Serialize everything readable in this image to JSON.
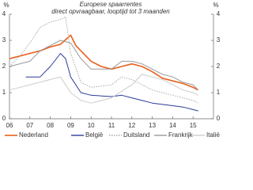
{
  "chart_data": {
    "type": "line",
    "title": "Europese spaarrentes",
    "subtitle": "direct opvraagbaar, looptijd tot 3 maanden",
    "ylabel": "%",
    "y2label": "%",
    "xlim": [
      2006,
      2016
    ],
    "xticks": [
      {
        "value": 2006,
        "label": "06"
      },
      {
        "value": 2007,
        "label": "07"
      },
      {
        "value": 2008,
        "label": "08"
      },
      {
        "value": 2009,
        "label": "09"
      },
      {
        "value": 2010,
        "label": "10"
      },
      {
        "value": 2011,
        "label": "11"
      },
      {
        "value": 2012,
        "label": "12"
      },
      {
        "value": 2013,
        "label": "13"
      },
      {
        "value": 2014,
        "label": "14"
      },
      {
        "value": 2015,
        "label": "15"
      }
    ],
    "ylim": [
      0,
      4
    ],
    "yticks": [
      0,
      1,
      2,
      3,
      4
    ],
    "y2lim": [
      0,
      4
    ],
    "y2ticks": [
      0,
      1,
      2,
      3,
      4
    ],
    "series": [
      {
        "name": "Nederland",
        "color": "#e8601c",
        "width": 1.6,
        "x": [
          2006,
          2006.5,
          2007,
          2007.5,
          2008,
          2008.5,
          2009,
          2009.25,
          2009.5,
          2010,
          2010.5,
          2011,
          2011.5,
          2012,
          2012.5,
          2013,
          2013.5,
          2014,
          2014.5,
          2015,
          2015.25
        ],
        "values": [
          2.3,
          2.4,
          2.5,
          2.6,
          2.75,
          2.85,
          3.2,
          2.8,
          2.6,
          2.2,
          2.0,
          1.9,
          2.0,
          2.1,
          2.0,
          1.8,
          1.55,
          1.45,
          1.35,
          1.2,
          1.1
        ]
      },
      {
        "name": "België",
        "color": "#2b3a9a",
        "width": 1,
        "x": [
          2006.8,
          2007.5,
          2008,
          2008.5,
          2008.75,
          2009,
          2009.5,
          2010,
          2011,
          2011.5,
          2012,
          2012.5,
          2013,
          2014,
          2014.5,
          2015,
          2015.25
        ],
        "values": [
          1.6,
          1.6,
          2.0,
          2.5,
          2.3,
          1.6,
          1.0,
          0.9,
          0.85,
          0.9,
          0.8,
          0.7,
          0.6,
          0.5,
          0.45,
          0.35,
          0.3
        ]
      },
      {
        "name": "Duitsland",
        "color": "#aaaaaa",
        "width": 1,
        "dashed": true,
        "x": [
          2006,
          2006.5,
          2007,
          2007.5,
          2008,
          2008.5,
          2008.75,
          2009,
          2009.5,
          2010,
          2011,
          2011.5,
          2012,
          2013,
          2014,
          2015,
          2015.25
        ],
        "values": [
          2.0,
          2.4,
          2.9,
          3.5,
          3.7,
          3.8,
          3.9,
          2.5,
          1.4,
          1.2,
          1.3,
          1.6,
          1.5,
          1.1,
          0.9,
          0.7,
          0.6
        ]
      },
      {
        "name": "Frankrijk",
        "color": "#999999",
        "width": 1,
        "x": [
          2006,
          2007,
          2007.5,
          2008,
          2008.5,
          2009,
          2009.5,
          2010,
          2011,
          2011.5,
          2012,
          2012.5,
          2013,
          2013.5,
          2014,
          2014.5,
          2015,
          2015.25
        ],
        "values": [
          2.0,
          2.2,
          2.6,
          2.8,
          3.0,
          2.9,
          2.3,
          1.9,
          1.9,
          2.2,
          2.2,
          2.1,
          1.9,
          1.7,
          1.6,
          1.4,
          1.3,
          1.1
        ]
      },
      {
        "name": "Italië",
        "color": "#cccccc",
        "width": 1,
        "x": [
          2006,
          2007,
          2008,
          2008.5,
          2009,
          2009.5,
          2010,
          2011,
          2012,
          2012.5,
          2013,
          2013.5,
          2014,
          2014.5,
          2015,
          2015.25
        ],
        "values": [
          1.1,
          1.3,
          1.5,
          1.6,
          1.0,
          0.7,
          0.6,
          0.8,
          1.3,
          1.7,
          1.6,
          1.5,
          1.3,
          1.1,
          1.0,
          0.9
        ]
      }
    ]
  }
}
